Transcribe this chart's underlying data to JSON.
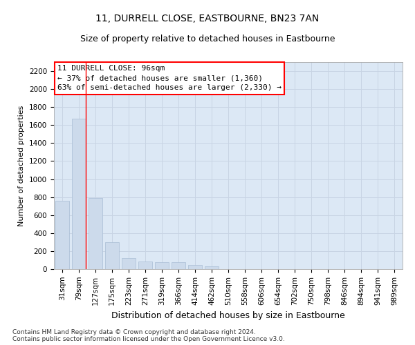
{
  "title1": "11, DURRELL CLOSE, EASTBOURNE, BN23 7AN",
  "title2": "Size of property relative to detached houses in Eastbourne",
  "xlabel": "Distribution of detached houses by size in Eastbourne",
  "ylabel": "Number of detached properties",
  "categories": [
    "31sqm",
    "79sqm",
    "127sqm",
    "175sqm",
    "223sqm",
    "271sqm",
    "319sqm",
    "366sqm",
    "414sqm",
    "462sqm",
    "510sqm",
    "558sqm",
    "606sqm",
    "654sqm",
    "702sqm",
    "750sqm",
    "798sqm",
    "846sqm",
    "894sqm",
    "941sqm",
    "989sqm"
  ],
  "values": [
    760,
    1670,
    790,
    300,
    120,
    85,
    75,
    75,
    45,
    30,
    0,
    0,
    0,
    0,
    0,
    0,
    0,
    0,
    0,
    0,
    0
  ],
  "bar_color": "#ccdaeb",
  "bar_edge_color": "#a8bdd4",
  "grid_color": "#c8d4e4",
  "annotation_line1": "11 DURRELL CLOSE: 96sqm",
  "annotation_line2": "← 37% of detached houses are smaller (1,360)",
  "annotation_line3": "63% of semi-detached houses are larger (2,330) →",
  "vline_position": 1.5,
  "ylim_max": 2300,
  "yticks": [
    0,
    200,
    400,
    600,
    800,
    1000,
    1200,
    1400,
    1600,
    1800,
    2000,
    2200
  ],
  "footer_line1": "Contains HM Land Registry data © Crown copyright and database right 2024.",
  "footer_line2": "Contains public sector information licensed under the Open Government Licence v3.0.",
  "bg_color": "#dce8f5",
  "title_fontsize": 10,
  "subtitle_fontsize": 9,
  "ylabel_fontsize": 8,
  "xlabel_fontsize": 9,
  "tick_fontsize": 7.5,
  "footer_fontsize": 6.5,
  "annot_fontsize": 8
}
